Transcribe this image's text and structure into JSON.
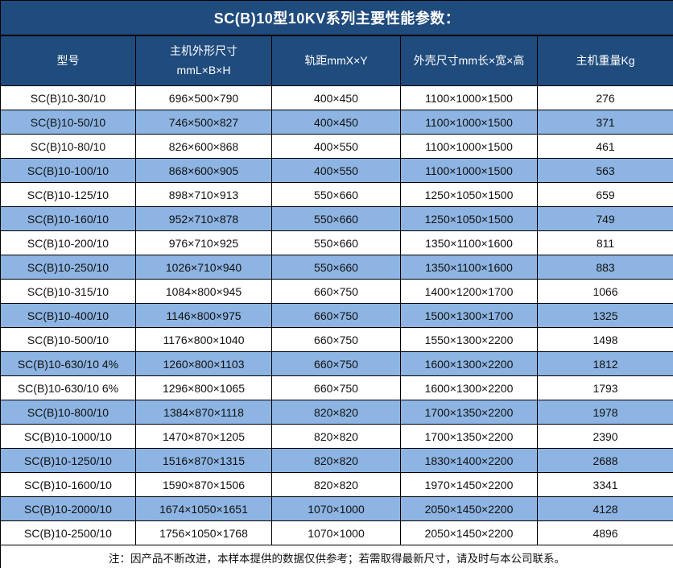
{
  "title": "SC(B)10型10KV系列主要性能参数：",
  "note": "注：因产品不断改进，本样本提供的数据仅供参考；若需取得最新尺寸，请及时与本公司联系。",
  "colors": {
    "header_bg": "#1F4B7D",
    "header_text": "#FFFFFF",
    "row_bg": "#FFFFFF",
    "row_alt_bg": "#8DB4E2",
    "border": "#000000",
    "body_text": "#111111"
  },
  "table": {
    "columns": [
      "型号",
      "主机外形尺寸\nmmL×B×H",
      "轨距mmX×Y",
      "外壳尺寸mm长×宽×高",
      "主机重量Kg"
    ],
    "rows": [
      [
        "SC(B)10-30/10",
        "696×500×790",
        "400×450",
        "1100×1000×1500",
        "276"
      ],
      [
        "SC(B)10-50/10",
        "746×500×827",
        "400×450",
        "1100×1000×1500",
        "371"
      ],
      [
        "SC(B)10-80/10",
        "826×600×868",
        "400×550",
        "1100×1000×1500",
        "461"
      ],
      [
        "SC(B)10-100/10",
        "868×600×905",
        "400×550",
        "1100×1000×1500",
        "563"
      ],
      [
        "SC(B)10-125/10",
        "898×710×913",
        "550×660",
        "1250×1050×1500",
        "659"
      ],
      [
        "SC(B)10-160/10",
        "952×710×878",
        "550×660",
        "1250×1050×1500",
        "749"
      ],
      [
        "SC(B)10-200/10",
        "976×710×925",
        "550×660",
        "1350×1100×1600",
        "811"
      ],
      [
        "SC(B)10-250/10",
        "1026×710×940",
        "550×660",
        "1350×1100×1600",
        "883"
      ],
      [
        "SC(B)10-315/10",
        "1084×800×945",
        "660×750",
        "1400×1200×1700",
        "1066"
      ],
      [
        "SC(B)10-400/10",
        "1146×800×975",
        "660×750",
        "1500×1300×1700",
        "1325"
      ],
      [
        "SC(B)10-500/10",
        "1176×800×1040",
        "660×750",
        "1550×1300×2200",
        "1498"
      ],
      [
        "SC(B)10-630/10 4%",
        "1260×800×1103",
        "660×750",
        "1600×1300×2200",
        "1812"
      ],
      [
        "SC(B)10-630/10 6%",
        "1296×800×1065",
        "660×750",
        "1600×1300×2200",
        "1793"
      ],
      [
        "SC(B)10-800/10",
        "1384×870×1118",
        "820×820",
        "1700×1350×2200",
        "1978"
      ],
      [
        "SC(B)10-1000/10",
        "1470×870×1205",
        "820×820",
        "1700×1350×2200",
        "2390"
      ],
      [
        "SC(B)10-1250/10",
        "1516×870×1315",
        "820×820",
        "1830×1400×2200",
        "2688"
      ],
      [
        "SC(B)10-1600/10",
        "1590×870×1506",
        "820×820",
        "1970×1450×2200",
        "3341"
      ],
      [
        "SC(B)10-2000/10",
        "1674×1050×1651",
        "1070×1000",
        "2050×1450×2200",
        "4128"
      ],
      [
        "SC(B)10-2500/10",
        "1756×1050×1768",
        "1070×1000",
        "2050×1450×2200",
        "4896"
      ]
    ]
  }
}
